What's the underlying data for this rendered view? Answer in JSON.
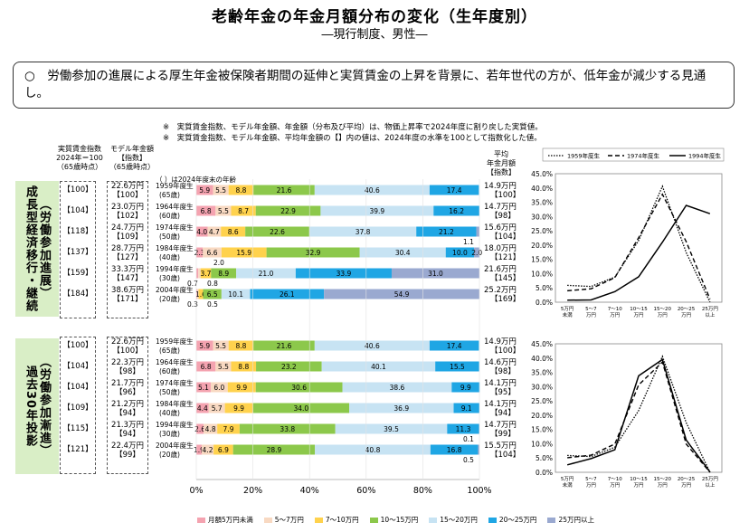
{
  "title": "老齢年金の年金月額分布の変化（生年度別）",
  "subtitle": "―現行制度、男性―",
  "summary": "○　労働参加の進展による厚生年金被保険者期間の延伸と実質賃金の上昇を背景に、若年世代の方が、低年金が減少する見通し。",
  "notes": [
    "※　実質賃金指数、モデル年金額、年金額（分布及び平均）は、物価上昇率で2024年度に割り戻した実質値。",
    "※　実質賃金指数、モデル年金額、平均年金額の【】内の値は、2024年度の水準を100として指数化した値。"
  ],
  "headers": {
    "wage": [
      "実質賃金指数",
      "2024年＝100",
      "（65歳時点）"
    ],
    "model": [
      "モデル年金額",
      "【指数】",
      "（65歳時点）"
    ],
    "age_note": "（ ）は2024年度末の年齢",
    "avg": [
      "平均",
      "年金月額",
      "【指数】"
    ]
  },
  "scenario_labels": [
    {
      "main": "成長型経済移行・継続",
      "sub": "（労働参加進展）"
    },
    {
      "main": "過去30年投影",
      "sub": "（労働参加漸進）"
    }
  ],
  "colors": [
    "#f4a3b0",
    "#f8d9c2",
    "#ffd24d",
    "#8cc84b",
    "#c7e3f3",
    "#1fa6e4",
    "#9aa9d0"
  ],
  "chart_data": [
    {
      "type": "bar",
      "stacked": true,
      "orientation": "horizontal",
      "categories": [
        "月額5万円未満",
        "5～7万円",
        "7～10万円",
        "10～15万円",
        "15～20万円",
        "20～25万円",
        "25万円以上"
      ],
      "xlim": [
        0,
        100
      ],
      "xticks": [
        "0%",
        "20%",
        "40%",
        "60%",
        "80%",
        "100%"
      ],
      "groups": [
        {
          "rows": [
            {
              "label": "1959年度生",
              "age": "(65歳)",
              "wage": "【100】",
              "model": "22.6万円",
              "model_idx": "【100】",
              "avg": "14.9万円",
              "avg_idx": "【100】",
              "values": [
                5.9,
                5.5,
                8.8,
                21.6,
                40.6,
                17.4,
                0.0
              ],
              "small": []
            },
            {
              "label": "1964年度生",
              "age": "(60歳)",
              "wage": "【104】",
              "model": "23.0万円",
              "model_idx": "【102】",
              "avg": "14.7万円",
              "avg_idx": "【98】",
              "values": [
                6.8,
                5.5,
                8.7,
                22.9,
                39.9,
                16.2,
                0.0
              ],
              "small": []
            },
            {
              "label": "1974年度生",
              "age": "(50歳)",
              "wage": "【118】",
              "model": "24.7万円",
              "model_idx": "【109】",
              "avg": "15.6万円",
              "avg_idx": "【104】",
              "values": [
                4.0,
                4.7,
                8.6,
                22.6,
                37.8,
                21.2,
                1.1
              ],
              "small": [
                "1.1"
              ]
            },
            {
              "label": "1984年度生",
              "age": "(40歳)",
              "wage": "【137】",
              "model": "28.7万円",
              "model_idx": "【127】",
              "avg": "18.0万円",
              "avg_idx": "【121】",
              "values": [
                2.3,
                6.6,
                15.9,
                32.9,
                30.4,
                10.0,
                2.0
              ],
              "small": [
                "2.0"
              ]
            },
            {
              "label": "1994年度生",
              "age": "(30歳)",
              "wage": "【159】",
              "model": "33.3万円",
              "model_idx": "【147】",
              "avg": "21.6万円",
              "avg_idx": "【145】",
              "values": [
                0.7,
                0.8,
                3.7,
                8.9,
                21.0,
                33.9,
                31.0
              ],
              "small": [
                "0.7",
                "0.8"
              ]
            },
            {
              "label": "2004年度生",
              "age": "(20歳)",
              "wage": "【184】",
              "model": "38.6万円",
              "model_idx": "【171】",
              "avg": "25.2万円",
              "avg_idx": "【169】",
              "values": [
                0.3,
                0.5,
                1.6,
                6.5,
                10.1,
                26.1,
                54.9
              ],
              "small": [
                "0.3",
                "0.5"
              ]
            }
          ]
        },
        {
          "rows": [
            {
              "label": "1959年度生",
              "age": "(65歳)",
              "wage": "【100】",
              "model": "22.6万円",
              "model_idx": "【100】",
              "avg": "14.9万円",
              "avg_idx": "【100】",
              "values": [
                5.9,
                5.5,
                8.8,
                21.6,
                40.6,
                17.4,
                0.0
              ],
              "small": []
            },
            {
              "label": "1964年度生",
              "age": "(60歳)",
              "wage": "【104】",
              "model": "22.3万円",
              "model_idx": "【98】",
              "avg": "14.6万円",
              "avg_idx": "【98】",
              "values": [
                6.8,
                5.5,
                8.8,
                23.2,
                40.1,
                15.5,
                0.0
              ],
              "small": []
            },
            {
              "label": "1974年度生",
              "age": "(50歳)",
              "wage": "【104】",
              "model": "21.7万円",
              "model_idx": "【96】",
              "avg": "14.1万円",
              "avg_idx": "【95】",
              "values": [
                5.1,
                6.0,
                9.9,
                30.6,
                38.6,
                9.9,
                0.0
              ],
              "small": []
            },
            {
              "label": "1984年度生",
              "age": "(40歳)",
              "wage": "【109】",
              "model": "21.2万円",
              "model_idx": "【94】",
              "avg": "14.1万円",
              "avg_idx": "【94】",
              "values": [
                4.4,
                5.7,
                9.9,
                34.0,
                36.9,
                9.1,
                0.0
              ],
              "small": []
            },
            {
              "label": "1994年度生",
              "age": "(30歳)",
              "wage": "【115】",
              "model": "21.3万円",
              "model_idx": "【94】",
              "avg": "14.7万円",
              "avg_idx": "【99】",
              "values": [
                2.6,
                4.8,
                7.9,
                33.8,
                39.5,
                11.3,
                0.1
              ],
              "small": [
                "0.1"
              ]
            },
            {
              "label": "2004年度生",
              "age": "(20歳)",
              "wage": "【121】",
              "model": "22.4万円",
              "model_idx": "【99】",
              "avg": "15.5万円",
              "avg_idx": "【104】",
              "values": [
                1.9,
                4.2,
                6.9,
                28.9,
                40.8,
                16.8,
                0.5
              ],
              "small": [
                "0.5"
              ]
            }
          ]
        }
      ]
    },
    {
      "type": "line",
      "categories": [
        "5万円未満",
        "5～7万円",
        "7～10万円",
        "10～15万円",
        "15～20万円",
        "20～25万円",
        "25万円以上"
      ],
      "ylim": [
        0,
        45
      ],
      "yticks": [
        "0.0%",
        "5.0%",
        "10.0%",
        "15.0%",
        "20.0%",
        "25.0%",
        "30.0%",
        "35.0%",
        "40.0%",
        "45.0%"
      ],
      "legend": [
        "1959年度生",
        "1974年度生",
        "1994年度生"
      ],
      "series": [
        {
          "name": "1959年度生",
          "style": "dotted",
          "values": [
            5.9,
            5.5,
            8.8,
            21.6,
            40.6,
            17.4,
            0.0
          ]
        },
        {
          "name": "1974年度生",
          "style": "dashed",
          "values": [
            4.0,
            4.7,
            8.6,
            22.6,
            37.8,
            21.2,
            1.1
          ]
        },
        {
          "name": "1994年度生",
          "style": "solid",
          "values": [
            0.7,
            0.8,
            3.7,
            8.9,
            21.0,
            33.9,
            31.0
          ]
        }
      ]
    },
    {
      "type": "line",
      "categories": [
        "5万円未満",
        "5～7万円",
        "7～10万円",
        "10～15万円",
        "15～20万円",
        "20～25万円",
        "25万円以上"
      ],
      "ylim": [
        0,
        45
      ],
      "yticks": [
        "0.0%",
        "5.0%",
        "10.0%",
        "15.0%",
        "20.0%",
        "25.0%",
        "30.0%",
        "35.0%",
        "40.0%",
        "45.0%"
      ],
      "series": [
        {
          "name": "1959年度生",
          "style": "dotted",
          "values": [
            5.9,
            5.5,
            8.8,
            21.6,
            40.6,
            17.4,
            0.0
          ]
        },
        {
          "name": "1974年度生",
          "style": "dashed",
          "values": [
            5.1,
            6.0,
            9.9,
            30.6,
            38.6,
            9.9,
            0.0
          ]
        },
        {
          "name": "1994年度生",
          "style": "solid",
          "values": [
            2.6,
            4.8,
            7.9,
            33.8,
            39.5,
            11.3,
            0.1
          ]
        }
      ]
    }
  ]
}
